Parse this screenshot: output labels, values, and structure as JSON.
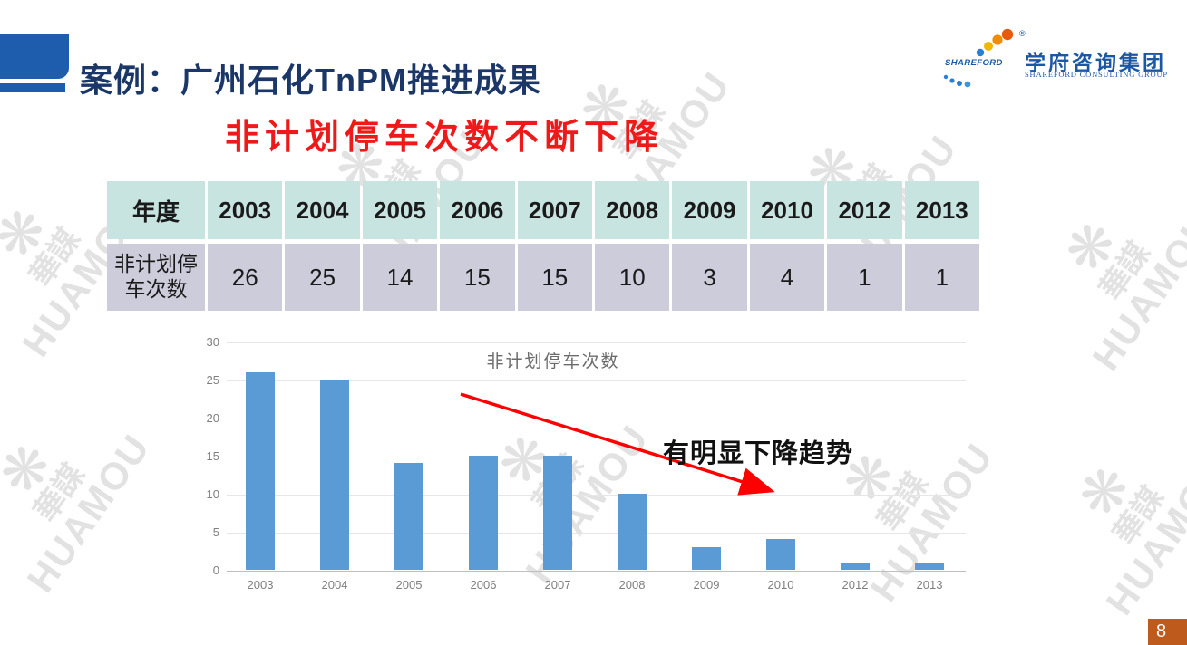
{
  "title": "案例：广州石化TnPM推进成果",
  "subtitle": "非计划停车次数不断下降",
  "logo": {
    "brand": "SHAREFORD",
    "registered_mark": "®",
    "company_cn": "学府咨询集团",
    "company_en": "SHAREFORD CONSULTING GROUP"
  },
  "table": {
    "corner_header": "年度",
    "row_label": "非计划停车次数",
    "row_label_lines": [
      "非计划停",
      "车次数"
    ],
    "years": [
      "2003",
      "2004",
      "2005",
      "2006",
      "2007",
      "2008",
      "2009",
      "2010",
      "2012",
      "2013"
    ],
    "values": [
      "26",
      "25",
      "14",
      "15",
      "15",
      "10",
      "3",
      "4",
      "1",
      "1"
    ]
  },
  "chart_data": {
    "type": "bar",
    "title": "非计划停车次数",
    "categories": [
      "2003",
      "2004",
      "2005",
      "2006",
      "2007",
      "2008",
      "2009",
      "2010",
      "2012",
      "2013"
    ],
    "values": [
      26,
      25,
      14,
      15,
      15,
      10,
      3,
      4,
      1,
      1
    ],
    "xlabel": "",
    "ylabel": "",
    "ylim": [
      0,
      30
    ],
    "yticks": [
      30,
      25,
      20,
      15,
      10,
      5,
      0
    ],
    "grid": "horizontal",
    "legend": "none",
    "bar_color": "#5b9bd5",
    "annotation": {
      "text": "有明显下降趋势",
      "arrow_color": "#ff0000"
    }
  },
  "watermark": {
    "text": "HUAMOU",
    "chars": "華謀",
    "figure": "❋"
  },
  "page_number": "8",
  "colors": {
    "title_blue": "#1b3768",
    "accent_blue": "#1e5dae",
    "subtitle_red": "#ee1a1a",
    "table_header_bg": "#c8e4e1",
    "table_row_bg": "#cdccdb",
    "bar_blue": "#5b9bd5",
    "arrow_red": "#ff0000",
    "page_badge_orange": "#bf5a1d",
    "logo_blue": "#1a57a5"
  }
}
